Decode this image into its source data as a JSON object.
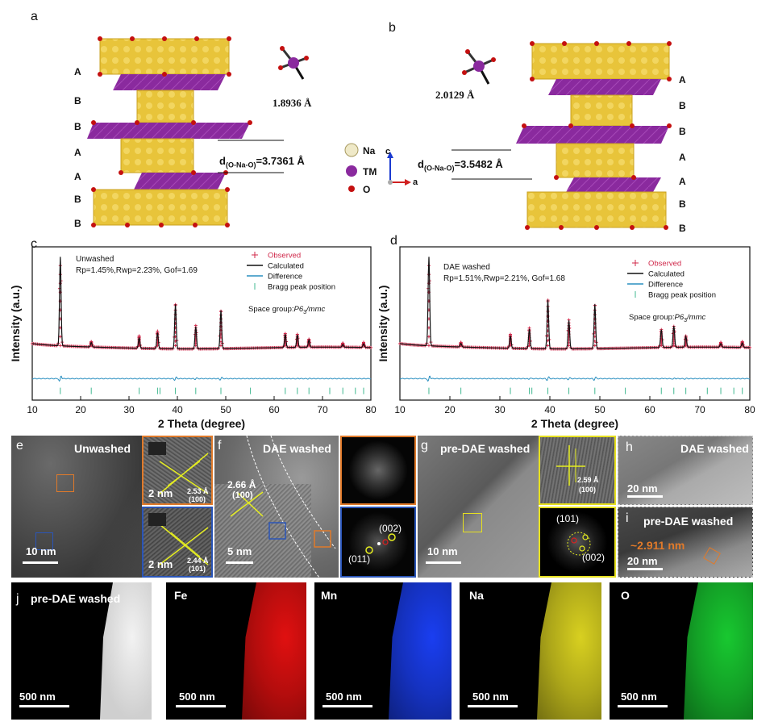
{
  "panel_a": {
    "label": "a",
    "stack": [
      "A",
      "B",
      "B",
      "A",
      "A",
      "B",
      "B"
    ],
    "bond_length": "1.8936 Å",
    "d_prefix": "d",
    "d_sub": "(O-Na-O)",
    "d_value": "=3.7361 Å"
  },
  "panel_b": {
    "label": "b",
    "stack": [
      "A",
      "B",
      "B",
      "A",
      "A",
      "B",
      "B"
    ],
    "bond_length": "2.0129 Å",
    "d_prefix": "d",
    "d_sub": "(O-Na-O)",
    "d_value": "=3.5482 Å"
  },
  "legend": {
    "na": "Na",
    "tm": "TM",
    "o": "O",
    "axis_c": "c",
    "axis_a": "a"
  },
  "chart_data": [
    {
      "panel": "c",
      "type": "line",
      "title": "",
      "sample_label": "Unwashed",
      "fit_stats": "Rp=1.45%,Rwp=2.23%, Gof=1.69",
      "space_group_prefix": "Space group:",
      "space_group": "P6",
      "space_group_sub": "3",
      "space_group_suffix": "/mmc",
      "legend": [
        "Observed",
        "Calculated",
        "Difference",
        "Bragg peak position"
      ],
      "xlabel": "2 Theta (degree)",
      "ylabel": "Intensity (a.u.)",
      "xlim": [
        10,
        80
      ],
      "xticks": [
        10,
        20,
        30,
        40,
        50,
        60,
        70,
        80
      ],
      "peaks": [
        [
          15.8,
          1.0
        ],
        [
          22.2,
          0.05
        ],
        [
          32.1,
          0.12
        ],
        [
          35.9,
          0.18
        ],
        [
          39.6,
          0.5
        ],
        [
          43.8,
          0.25
        ],
        [
          49.0,
          0.43
        ],
        [
          62.3,
          0.15
        ],
        [
          64.8,
          0.14
        ],
        [
          67.2,
          0.08
        ],
        [
          74.2,
          0.03
        ],
        [
          78.5,
          0.04
        ]
      ],
      "bragg": [
        15.8,
        22.2,
        32.1,
        35.9,
        36.4,
        39.6,
        43.8,
        49.0,
        55.1,
        62.3,
        64.8,
        67.2,
        71.5,
        74.2,
        76.8,
        78.5
      ]
    },
    {
      "panel": "d",
      "type": "line",
      "title": "",
      "sample_label": "DAE washed",
      "fit_stats": "Rp=1.51%,Rwp=2.21%, Gof=1.68",
      "space_group_prefix": "Space group:",
      "space_group": "P6",
      "space_group_sub": "3",
      "space_group_suffix": "/mmc",
      "legend": [
        "Observed",
        "Calculated",
        "Difference",
        "Bragg peak position"
      ],
      "xlabel": "2 Theta (degree)",
      "ylabel": "Intensity (a.u.)",
      "xlim": [
        10,
        80
      ],
      "xticks": [
        10,
        20,
        30,
        40,
        50,
        60,
        70,
        80
      ],
      "peaks": [
        [
          15.8,
          1.0
        ],
        [
          22.2,
          0.04
        ],
        [
          32.1,
          0.14
        ],
        [
          35.9,
          0.22
        ],
        [
          39.6,
          0.55
        ],
        [
          43.8,
          0.32
        ],
        [
          49.0,
          0.5
        ],
        [
          62.3,
          0.2
        ],
        [
          64.8,
          0.24
        ],
        [
          67.2,
          0.12
        ],
        [
          74.2,
          0.04
        ],
        [
          78.5,
          0.05
        ]
      ],
      "bragg": [
        15.8,
        22.2,
        32.1,
        35.9,
        36.4,
        39.6,
        43.8,
        49.0,
        55.1,
        62.3,
        64.8,
        67.2,
        71.5,
        74.2,
        76.8,
        78.5
      ]
    }
  ],
  "tem": {
    "e": {
      "label": "e",
      "title": "Unwashed",
      "scale": "10 nm",
      "inset1_scale": "2 nm",
      "inset1_d": "2.53 Å",
      "inset1_hkl": "(100)",
      "inset2_scale": "2 nm",
      "inset2_d": "2.44 Å",
      "inset2_hkl": "(101)"
    },
    "f": {
      "label": "f",
      "title": "DAE washed",
      "scale": "5 nm",
      "d": "2.66 Å",
      "hkl": "(100)",
      "fft_a": "(002)",
      "fft_b": "(011)"
    },
    "g": {
      "label": "g",
      "title": "pre-DAE washed",
      "scale": "10 nm",
      "inset_d": "2.59 Å",
      "inset_hkl": "(100)",
      "fft_a": "(101)",
      "fft_b": "(002)"
    },
    "h": {
      "label": "h",
      "title": "DAE washed",
      "scale": "20 nm"
    },
    "i": {
      "label": "i",
      "title": "pre-DAE washed",
      "scale": "20 nm",
      "thickness": "~2.911 nm"
    }
  },
  "eds": {
    "label": "j",
    "title": "pre-DAE washed",
    "maps": [
      {
        "element": "",
        "scale": "500 nm",
        "color": "#e8e8e8"
      },
      {
        "element": "Fe",
        "scale": "500 nm",
        "color": "#e01010"
      },
      {
        "element": "Mn",
        "scale": "500 nm",
        "color": "#1a3ef0"
      },
      {
        "element": "Na",
        "scale": "500 nm",
        "color": "#d8d020"
      },
      {
        "element": "O",
        "scale": "500 nm",
        "color": "#18c830"
      }
    ]
  }
}
